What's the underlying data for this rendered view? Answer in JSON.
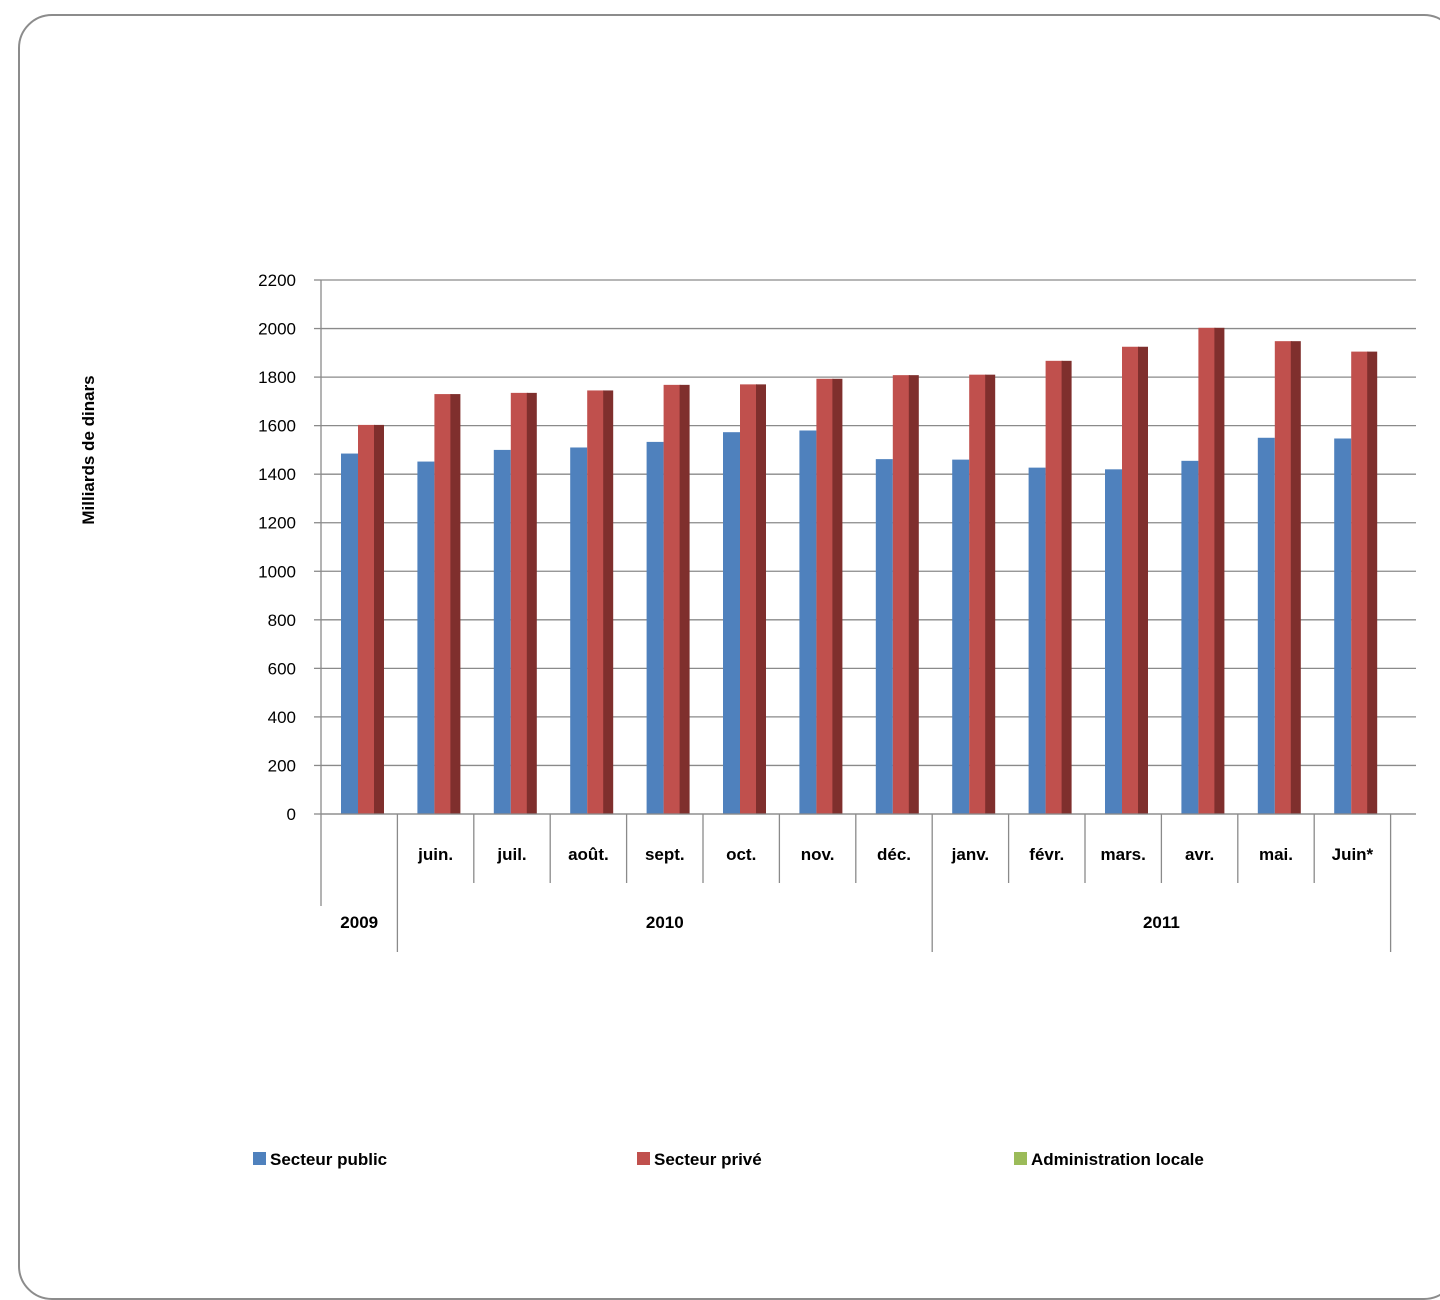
{
  "chart_data": {
    "type": "bar",
    "ylabel": "Milliards de dinars",
    "ylim": [
      0,
      2200
    ],
    "ytick_step": 200,
    "yticks": [
      "0",
      "200",
      "400",
      "600",
      "800",
      "1000",
      "1200",
      "1400",
      "1600",
      "1800",
      "2000",
      "2200"
    ],
    "grid": true,
    "categories": [
      "",
      "juin.",
      "juil.",
      "août.",
      "sept.",
      "oct.",
      "nov.",
      "déc.",
      "janv.",
      "févr.",
      "mars.",
      "avr.",
      "mai.",
      "Juin*"
    ],
    "year_groups": [
      {
        "label": "2009",
        "start": 0,
        "end": 0
      },
      {
        "label": "2010",
        "start": 1,
        "end": 7
      },
      {
        "label": "2011",
        "start": 8,
        "end": 13
      }
    ],
    "series": [
      {
        "name": "Secteur public",
        "color": "#4F81BD",
        "values": [
          1485,
          1452,
          1500,
          1510,
          1533,
          1573,
          1580,
          1462,
          1460,
          1427,
          1420,
          1455,
          1550,
          1547
        ]
      },
      {
        "name": "Secteur privé",
        "color": "#C0504D",
        "side_color": "#7F2F2D",
        "values": [
          1603,
          1730,
          1735,
          1745,
          1768,
          1770,
          1793,
          1808,
          1810,
          1867,
          1925,
          2003,
          1948,
          1905
        ]
      },
      {
        "name": "Administration locale",
        "color": "#9BBB59",
        "values": [
          0,
          0,
          0,
          0,
          0,
          0,
          0,
          0,
          0,
          0,
          0,
          0,
          0,
          0
        ]
      }
    ],
    "legend_position": "bottom"
  }
}
